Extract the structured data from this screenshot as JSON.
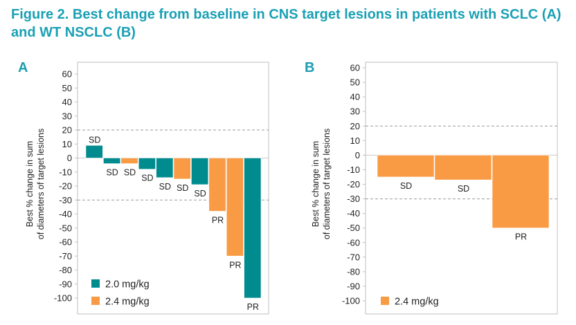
{
  "figure_title": "Figure 2. Best change from baseline in CNS target lesions in patients with SCLC (A) and WT NSCLC (B)",
  "colors": {
    "teal": "#008b8f",
    "orange": "#f99b45",
    "title": "#1aa0b4"
  },
  "chart_data": [
    {
      "panel": "A",
      "type": "bar",
      "ylabel": "Best % change in sum of diameters of target lesions",
      "ylim": [
        -100,
        60
      ],
      "yticks": [
        60,
        50,
        40,
        30,
        20,
        10,
        0,
        -10,
        -20,
        -30,
        -40,
        -50,
        -60,
        -70,
        -80,
        -90,
        -100
      ],
      "reference_lines": [
        20,
        -30
      ],
      "legend": [
        {
          "label": "2.0 mg/kg",
          "color": "#008b8f"
        },
        {
          "label": "2.4 mg/kg",
          "color": "#f99b45"
        }
      ],
      "bars": [
        {
          "value": 9,
          "dose": "2.0 mg/kg",
          "label": "SD"
        },
        {
          "value": -4,
          "dose": "2.0 mg/kg",
          "label": "SD"
        },
        {
          "value": -4,
          "dose": "2.4 mg/kg",
          "label": "SD"
        },
        {
          "value": -8,
          "dose": "2.0 mg/kg",
          "label": "SD"
        },
        {
          "value": -14,
          "dose": "2.0 mg/kg",
          "label": "SD"
        },
        {
          "value": -15,
          "dose": "2.4 mg/kg",
          "label": "SD"
        },
        {
          "value": -19,
          "dose": "2.0 mg/kg",
          "label": "SD"
        },
        {
          "value": -38,
          "dose": "2.4 mg/kg",
          "label": "PR"
        },
        {
          "value": -70,
          "dose": "2.4 mg/kg",
          "label": "PR"
        },
        {
          "value": -100,
          "dose": "2.0 mg/kg",
          "label": "PR"
        }
      ]
    },
    {
      "panel": "B",
      "type": "bar",
      "ylabel": "Best % change in sum of diameters of target lesions",
      "ylim": [
        -100,
        60
      ],
      "yticks": [
        60,
        50,
        40,
        30,
        20,
        10,
        0,
        -10,
        -20,
        -30,
        -40,
        -50,
        -60,
        -70,
        -80,
        -90,
        -100
      ],
      "reference_lines": [
        20,
        -30
      ],
      "legend": [
        {
          "label": "2.4 mg/kg",
          "color": "#f99b45"
        }
      ],
      "bars": [
        {
          "value": -15,
          "dose": "2.4 mg/kg",
          "label": "SD"
        },
        {
          "value": -17,
          "dose": "2.4 mg/kg",
          "label": "SD"
        },
        {
          "value": -50,
          "dose": "2.4 mg/kg",
          "label": "PR"
        }
      ]
    }
  ]
}
